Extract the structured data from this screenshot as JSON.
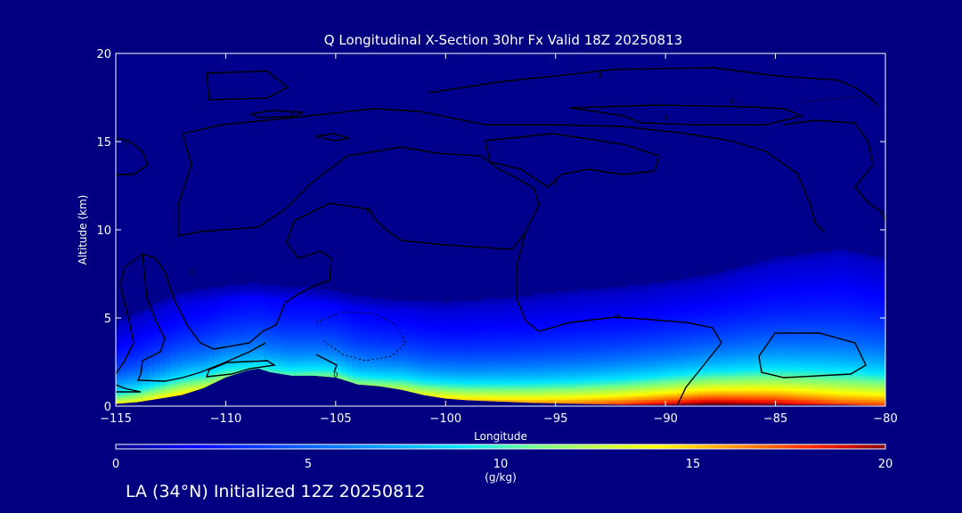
{
  "chart_data": {
    "type": "heatmap",
    "title": "Q Longitudinal X-Section 30hr  Fx Valid 18Z 20250813",
    "xlabel": "Longitude",
    "ylabel": "Altitude (km)",
    "xlim": [
      -115,
      -80
    ],
    "ylim": [
      0,
      20
    ],
    "x_ticks": [
      -115,
      -110,
      -105,
      -100,
      -95,
      -90,
      -85,
      -80
    ],
    "y_ticks": [
      0,
      5,
      10,
      15,
      20
    ],
    "colorbar": {
      "label": "(g/kg)",
      "range": [
        0,
        20
      ],
      "ticks": [
        0,
        5,
        10,
        15,
        20
      ]
    },
    "terrain_profile": {
      "lon": [
        -115,
        -114,
        -113,
        -112,
        -111,
        -110,
        -109,
        -108.5,
        -108,
        -107,
        -106,
        -105,
        -104,
        -103,
        -102,
        -101,
        -100,
        -99,
        -98,
        -96,
        -94,
        -92,
        -90,
        -88,
        -86,
        -84,
        -82,
        -80
      ],
      "alt_km": [
        0.1,
        0.2,
        0.4,
        0.6,
        1.0,
        1.6,
        2.0,
        2.1,
        1.9,
        1.7,
        1.7,
        1.6,
        1.2,
        1.1,
        0.9,
        0.6,
        0.4,
        0.3,
        0.25,
        0.15,
        0.1,
        0.05,
        0.05,
        0.05,
        0.05,
        0.05,
        0.05,
        0.0
      ]
    },
    "moisture_profile": {
      "lon": [
        -115,
        -112,
        -109,
        -106,
        -103,
        -100,
        -97,
        -94,
        -91,
        -88,
        -85,
        -82,
        -80
      ],
      "surface_q": [
        12,
        13,
        8,
        9,
        10,
        13,
        14,
        15,
        17,
        19,
        18,
        16,
        16
      ],
      "moist_depth_km": [
        4.5,
        6.0,
        6.2,
        6.0,
        5.5,
        5.5,
        5.8,
        6.2,
        6.5,
        7.0,
        8.0,
        8.5,
        8.0
      ]
    },
    "contour_labels": [
      {
        "lon": -107,
        "alt": 16.5,
        "text": "0"
      },
      {
        "lon": -93,
        "alt": 18.8,
        "text": "0"
      },
      {
        "lon": -87,
        "alt": 17.3,
        "text": "0"
      },
      {
        "lon": -90,
        "alt": 16.4,
        "text": "0"
      },
      {
        "lon": -114.5,
        "alt": 14.9,
        "text": "0"
      },
      {
        "lon": -95,
        "alt": 12.7,
        "text": "0"
      },
      {
        "lon": -103.5,
        "alt": 11.1,
        "text": "0"
      },
      {
        "lon": -111.5,
        "alt": 7.6,
        "text": "0"
      },
      {
        "lon": -92.2,
        "alt": 5.1,
        "text": "0"
      },
      {
        "lon": -105,
        "alt": 1.8,
        "text": "0"
      }
    ]
  },
  "footer_text": "LA (34°N) Initialized 12Z 20250812",
  "colors": {
    "background": "#000080",
    "axes": "#ffffff",
    "contour": "#000000",
    "terrain": "#000080"
  }
}
